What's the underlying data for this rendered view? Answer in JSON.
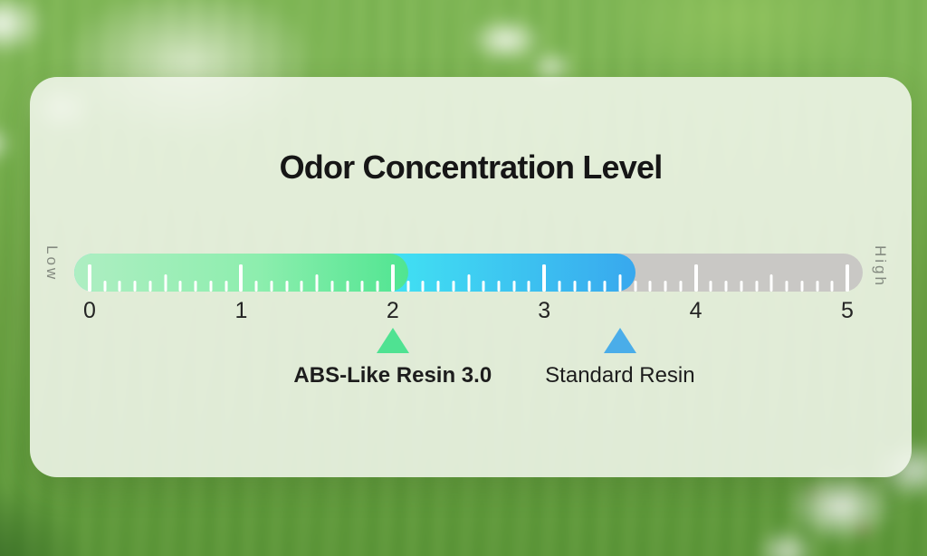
{
  "chart_data": {
    "type": "linear-gauge",
    "title": "Odor Concentration Level",
    "axis": {
      "min": 0,
      "max": 5,
      "major_tick_interval": 1,
      "medium_tick_interval": 0.5,
      "minor_tick_interval": 0.1,
      "tick_labels": [
        "0",
        "1",
        "2",
        "3",
        "4",
        "5"
      ],
      "low_label": "Low",
      "high_label": "High"
    },
    "segments": [
      {
        "name": "track",
        "from": 0,
        "to": 5,
        "color": "#c9c8c5"
      },
      {
        "name": "medium-odor",
        "from": 0,
        "to": 3.6,
        "color_start": "#4ae8ee",
        "color_end": "#38a8ee"
      },
      {
        "name": "low-odor",
        "from": 0,
        "to": 2.1,
        "color_start": "#aeeec2",
        "color_end": "#50e591"
      }
    ],
    "markers": [
      {
        "label": "ABS-Like Resin 3.0",
        "value": 2,
        "color": "#4fe292",
        "bold": true
      },
      {
        "label": "Standard Resin",
        "value": 3.5,
        "color": "#4aade9",
        "bold": false
      }
    ],
    "colors": {
      "tick": "#ffffff",
      "title_text": "#161616",
      "axis_numbers": "#242424",
      "side_labels": "#848a80"
    }
  }
}
